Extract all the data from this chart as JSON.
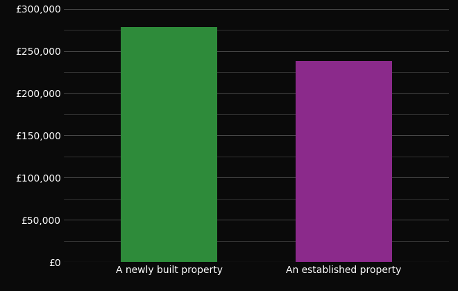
{
  "categories": [
    "A newly built property",
    "An established property"
  ],
  "values": [
    278000,
    238000
  ],
  "bar_colors": [
    "#2e8b3a",
    "#8b2a8b"
  ],
  "background_color": "#0a0a0a",
  "text_color": "#ffffff",
  "grid_color": "#555555",
  "ylim": [
    0,
    300000
  ],
  "ytick_major": [
    0,
    50000,
    100000,
    150000,
    200000,
    250000,
    300000
  ],
  "ytick_minor_step": 25000,
  "bar_width": 0.55,
  "figsize": [
    6.6,
    4.2
  ],
  "dpi": 100,
  "xlabel_fontsize": 10,
  "ylabel_fontsize": 10
}
